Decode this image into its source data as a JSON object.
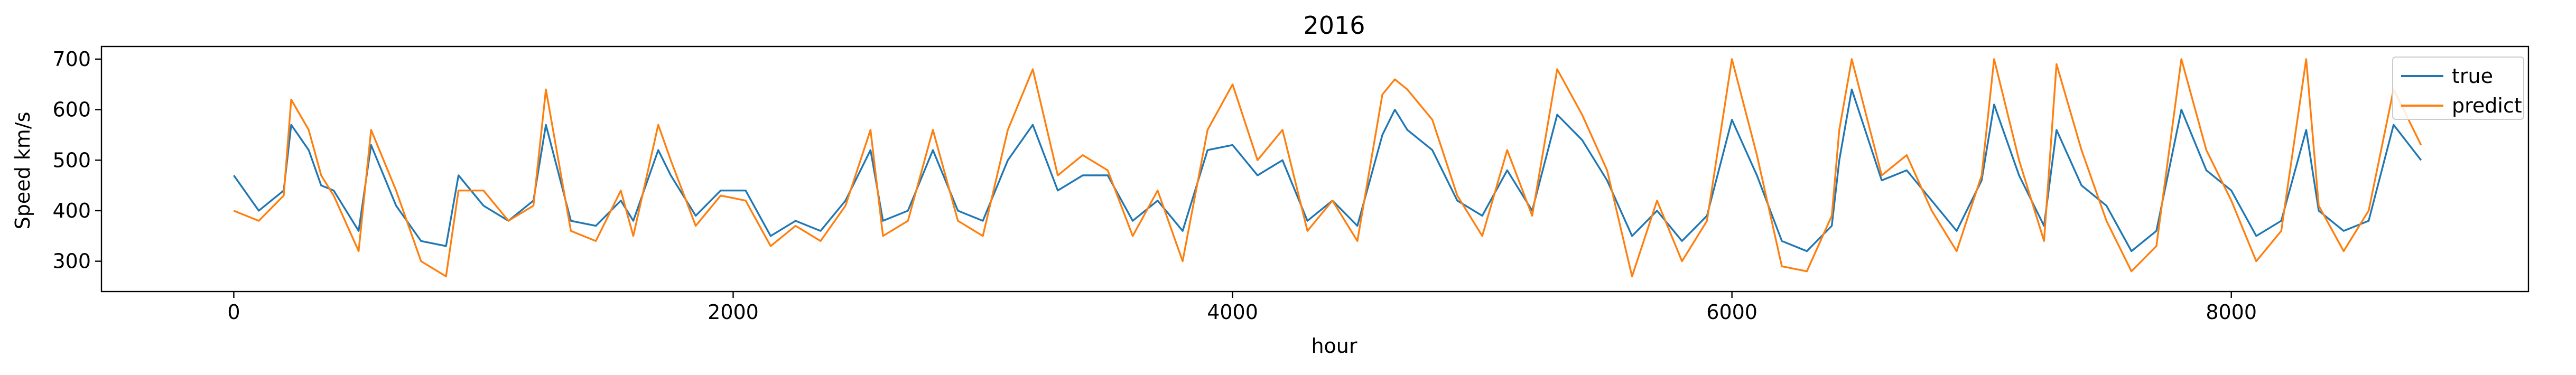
{
  "chart_data": {
    "type": "line",
    "title": "2016",
    "xlabel": "hour",
    "ylabel": "Speed km/s",
    "xlim": [
      -530,
      9190
    ],
    "ylim": [
      240,
      725
    ],
    "xticks": [
      0,
      2000,
      4000,
      6000,
      8000
    ],
    "yticks": [
      300,
      400,
      500,
      600,
      700
    ],
    "grid": false,
    "legend": {
      "position": "upper right"
    },
    "series": [
      {
        "name": "true",
        "color": "#1f77b4",
        "x": [
          0,
          100,
          200,
          230,
          300,
          350,
          400,
          500,
          550,
          650,
          750,
          850,
          900,
          1000,
          1100,
          1200,
          1250,
          1350,
          1450,
          1550,
          1600,
          1700,
          1750,
          1850,
          1950,
          2050,
          2150,
          2250,
          2350,
          2450,
          2550,
          2600,
          2700,
          2800,
          2900,
          3000,
          3100,
          3200,
          3300,
          3400,
          3500,
          3600,
          3700,
          3800,
          3900,
          4000,
          4100,
          4200,
          4300,
          4400,
          4500,
          4600,
          4650,
          4700,
          4800,
          4900,
          5000,
          5100,
          5200,
          5300,
          5400,
          5500,
          5600,
          5700,
          5800,
          5900,
          6000,
          6100,
          6200,
          6300,
          6400,
          6430,
          6480,
          6600,
          6700,
          6800,
          6900,
          7000,
          7050,
          7150,
          7250,
          7300,
          7400,
          7500,
          7600,
          7700,
          7800,
          7900,
          8000,
          8100,
          8200,
          8300,
          8350,
          8450,
          8550,
          8650,
          8760
        ],
        "values": [
          470,
          400,
          440,
          570,
          520,
          450,
          440,
          360,
          530,
          410,
          340,
          330,
          470,
          410,
          380,
          420,
          570,
          380,
          370,
          420,
          380,
          520,
          470,
          390,
          440,
          440,
          350,
          380,
          360,
          420,
          520,
          380,
          400,
          520,
          400,
          380,
          500,
          570,
          440,
          470,
          470,
          380,
          420,
          360,
          520,
          530,
          470,
          500,
          380,
          420,
          370,
          550,
          600,
          560,
          520,
          420,
          390,
          480,
          400,
          590,
          540,
          460,
          350,
          400,
          340,
          390,
          580,
          470,
          340,
          320,
          370,
          500,
          640,
          460,
          480,
          420,
          360,
          460,
          610,
          470,
          370,
          560,
          450,
          410,
          320,
          360,
          600,
          480,
          440,
          350,
          380,
          560,
          400,
          360,
          380,
          570,
          500
        ]
      },
      {
        "name": "predict",
        "color": "#ff7f0e",
        "x": [
          0,
          100,
          200,
          230,
          300,
          350,
          400,
          500,
          550,
          650,
          750,
          850,
          900,
          1000,
          1100,
          1200,
          1250,
          1350,
          1450,
          1550,
          1600,
          1700,
          1750,
          1850,
          1950,
          2050,
          2150,
          2250,
          2350,
          2450,
          2550,
          2600,
          2700,
          2800,
          2900,
          3000,
          3100,
          3200,
          3300,
          3400,
          3500,
          3600,
          3700,
          3800,
          3900,
          4000,
          4100,
          4200,
          4300,
          4400,
          4500,
          4600,
          4650,
          4700,
          4800,
          4900,
          5000,
          5100,
          5200,
          5300,
          5400,
          5500,
          5600,
          5700,
          5800,
          5900,
          6000,
          6100,
          6200,
          6300,
          6400,
          6430,
          6480,
          6600,
          6700,
          6800,
          6900,
          7000,
          7050,
          7150,
          7250,
          7300,
          7400,
          7500,
          7600,
          7700,
          7800,
          7900,
          8000,
          8100,
          8200,
          8300,
          8350,
          8450,
          8550,
          8650,
          8760
        ],
        "values": [
          400,
          380,
          430,
          620,
          560,
          470,
          430,
          320,
          560,
          440,
          300,
          270,
          440,
          440,
          380,
          410,
          640,
          360,
          340,
          440,
          350,
          570,
          500,
          370,
          430,
          420,
          330,
          370,
          340,
          410,
          560,
          350,
          380,
          560,
          380,
          350,
          560,
          680,
          470,
          510,
          480,
          350,
          440,
          300,
          560,
          650,
          500,
          560,
          360,
          420,
          340,
          630,
          660,
          640,
          580,
          430,
          350,
          520,
          390,
          680,
          590,
          480,
          270,
          420,
          300,
          380,
          700,
          510,
          290,
          280,
          390,
          560,
          700,
          470,
          510,
          400,
          320,
          470,
          700,
          500,
          340,
          690,
          520,
          380,
          280,
          330,
          700,
          520,
          420,
          300,
          360,
          700,
          410,
          320,
          400,
          640,
          530
        ]
      }
    ]
  }
}
